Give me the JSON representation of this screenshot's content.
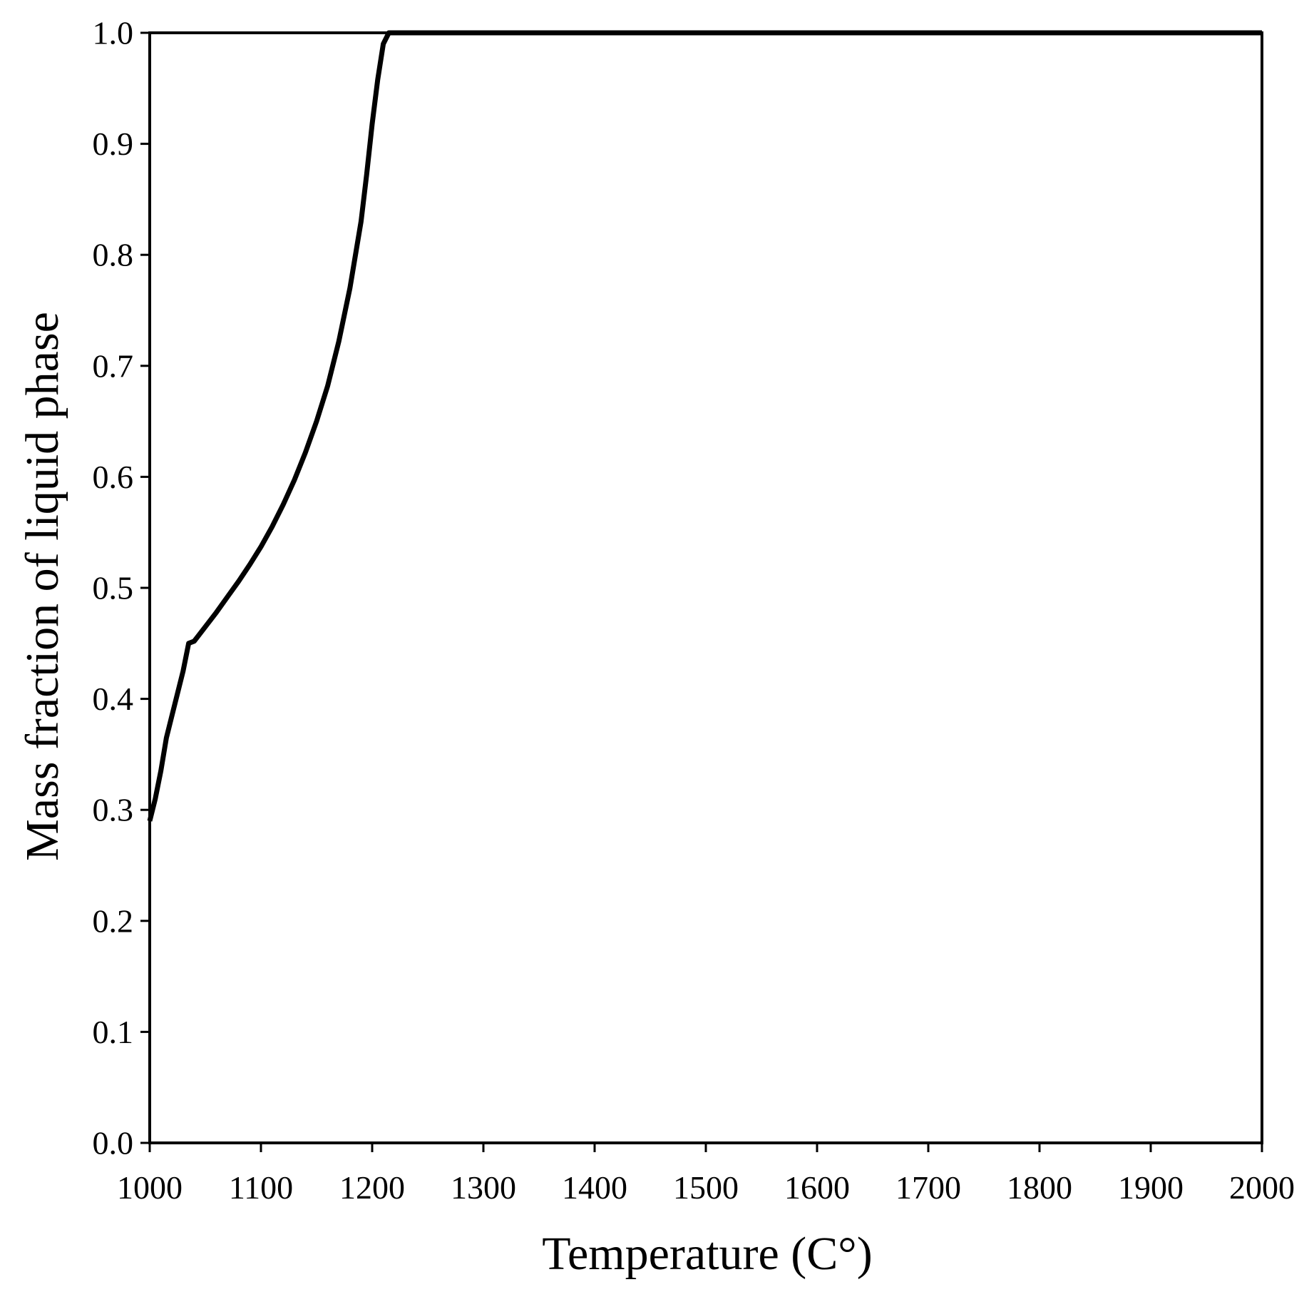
{
  "chart_data": {
    "type": "line",
    "xlabel": "Temperature (C°)",
    "ylabel": "Mass fraction of liquid phase",
    "xlim": [
      1000,
      2000
    ],
    "ylim": [
      0.0,
      1.0
    ],
    "x_ticks": [
      "1000",
      "1100",
      "1200",
      "1300",
      "1400",
      "1500",
      "1600",
      "1700",
      "1800",
      "1900",
      "2000"
    ],
    "y_ticks": [
      "0.0",
      "0.1",
      "0.2",
      "0.3",
      "0.4",
      "0.5",
      "0.6",
      "0.7",
      "0.8",
      "0.9",
      "1.0"
    ],
    "grid": false,
    "line_color": "#000000",
    "series": [
      {
        "x": [
          1000,
          1005,
          1010,
          1015,
          1020,
          1025,
          1030,
          1035,
          1040,
          1050,
          1060,
          1070,
          1080,
          1090,
          1100,
          1110,
          1120,
          1130,
          1140,
          1150,
          1160,
          1170,
          1180,
          1190,
          1195,
          1200,
          1205,
          1210,
          1215,
          1300,
          1400,
          1500,
          1600,
          1700,
          1800,
          1900,
          2000
        ],
        "y": [
          0.29,
          0.31,
          0.335,
          0.365,
          0.385,
          0.405,
          0.425,
          0.45,
          0.452,
          0.465,
          0.478,
          0.492,
          0.506,
          0.521,
          0.537,
          0.555,
          0.575,
          0.597,
          0.622,
          0.65,
          0.682,
          0.722,
          0.77,
          0.83,
          0.872,
          0.918,
          0.958,
          0.99,
          1.0,
          1.0,
          1.0,
          1.0,
          1.0,
          1.0,
          1.0,
          1.0,
          1.0
        ]
      }
    ]
  }
}
